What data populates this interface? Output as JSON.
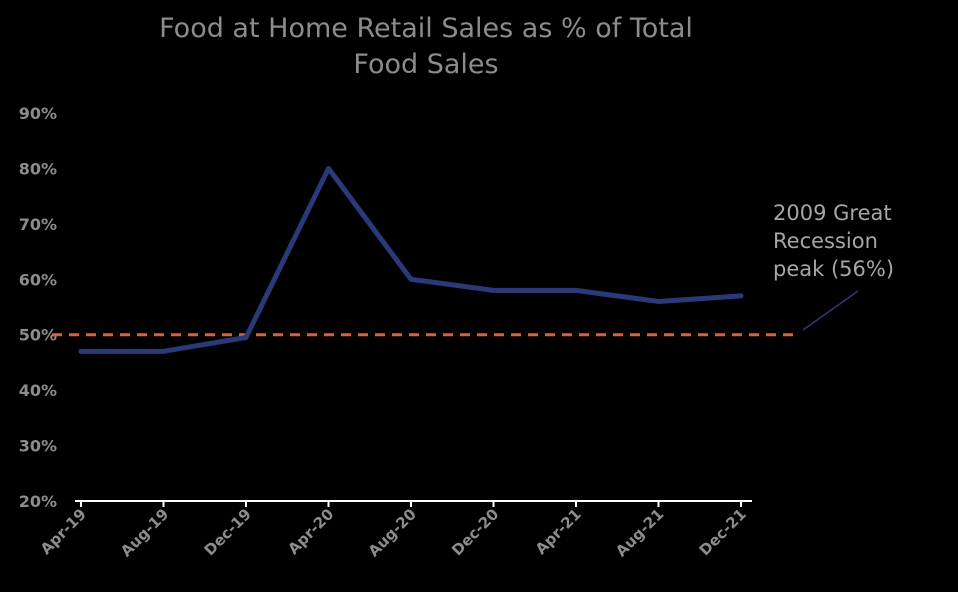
{
  "chart_data": {
    "type": "line",
    "title": "Food at Home Retail Sales as % of Total Food Sales",
    "title_lines": [
      "Food at Home Retail Sales as % of Total",
      "Food Sales"
    ],
    "categories": [
      "Apr-19",
      "Aug-19",
      "Dec-19",
      "Apr-20",
      "Aug-20",
      "Dec-20",
      "Apr-21",
      "Aug-21",
      "Dec-21"
    ],
    "series": [
      {
        "values": [
          0.47,
          0.47,
          0.495,
          0.8,
          0.6,
          0.58,
          0.58,
          0.56,
          0.57
        ],
        "color": "#2a3a78"
      }
    ],
    "reference_line": {
      "value": 0.5,
      "color": "#d9623b",
      "style": "dashed"
    },
    "annotation": {
      "lines": [
        "2009 Great",
        "Recession",
        "peak (56%)"
      ],
      "color": "#a6a6a6",
      "connector_color": "#2a3a78"
    },
    "ylim": [
      0.2,
      0.9
    ],
    "yticks": [
      {
        "value": 0.2,
        "label": "20%"
      },
      {
        "value": 0.3,
        "label": "30%"
      },
      {
        "value": 0.4,
        "label": "40%"
      },
      {
        "value": 0.5,
        "label": "50%"
      },
      {
        "value": 0.6,
        "label": "60%"
      },
      {
        "value": 0.7,
        "label": "70%"
      },
      {
        "value": 0.8,
        "label": "80%"
      },
      {
        "value": 0.9,
        "label": "90%"
      }
    ],
    "xlabel": "",
    "ylabel": "",
    "grid": false,
    "legend": "none",
    "axis_color": "#ffffff",
    "text_color": "#8c8c8c",
    "background": "#000000"
  }
}
